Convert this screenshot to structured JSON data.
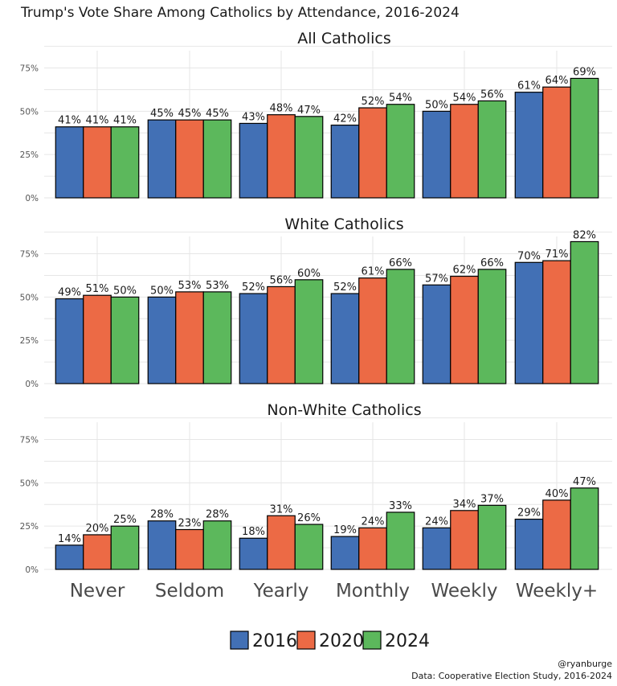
{
  "title": "Trump's Vote Share Among Catholics by Attendance, 2016-2024",
  "caption": {
    "handle": "@ryanburge",
    "source": "Data: Cooperative Election Study, 2016-2024"
  },
  "colors": {
    "2016": "#4270b5",
    "2020": "#ec6a45",
    "2024": "#5cb85c"
  },
  "chart_data": [
    {
      "type": "bar",
      "title": "All Catholics",
      "categories": [
        "Never",
        "Seldom",
        "Yearly",
        "Monthly",
        "Weekly",
        "Weekly+"
      ],
      "ylim": [
        0,
        0.85
      ],
      "yticks": [
        "0%",
        "25%",
        "50%",
        "75%"
      ],
      "grid": true,
      "series": [
        {
          "name": "2016",
          "values": [
            41,
            45,
            43,
            42,
            50,
            61
          ]
        },
        {
          "name": "2020",
          "values": [
            41,
            45,
            48,
            52,
            54,
            64
          ]
        },
        {
          "name": "2024",
          "values": [
            41,
            45,
            47,
            54,
            56,
            69
          ]
        }
      ]
    },
    {
      "type": "bar",
      "title": "White Catholics",
      "categories": [
        "Never",
        "Seldom",
        "Yearly",
        "Monthly",
        "Weekly",
        "Weekly+"
      ],
      "ylim": [
        0,
        0.85
      ],
      "yticks": [
        "0%",
        "25%",
        "50%",
        "75%"
      ],
      "grid": true,
      "series": [
        {
          "name": "2016",
          "values": [
            49,
            50,
            52,
            52,
            57,
            70
          ]
        },
        {
          "name": "2020",
          "values": [
            51,
            53,
            56,
            61,
            62,
            71
          ]
        },
        {
          "name": "2024",
          "values": [
            50,
            53,
            60,
            66,
            66,
            82
          ]
        }
      ]
    },
    {
      "type": "bar",
      "title": "Non-White Catholics",
      "categories": [
        "Never",
        "Seldom",
        "Yearly",
        "Monthly",
        "Weekly",
        "Weekly+"
      ],
      "ylim": [
        0,
        0.85
      ],
      "yticks": [
        "0%",
        "25%",
        "50%",
        "75%"
      ],
      "grid": true,
      "series": [
        {
          "name": "2016",
          "values": [
            14,
            28,
            18,
            19,
            24,
            29
          ]
        },
        {
          "name": "2020",
          "values": [
            20,
            23,
            31,
            24,
            34,
            40
          ]
        },
        {
          "name": "2024",
          "values": [
            25,
            28,
            26,
            33,
            37,
            47
          ]
        }
      ]
    }
  ],
  "legend": {
    "position": "bottom",
    "items": [
      "2016",
      "2020",
      "2024"
    ]
  }
}
